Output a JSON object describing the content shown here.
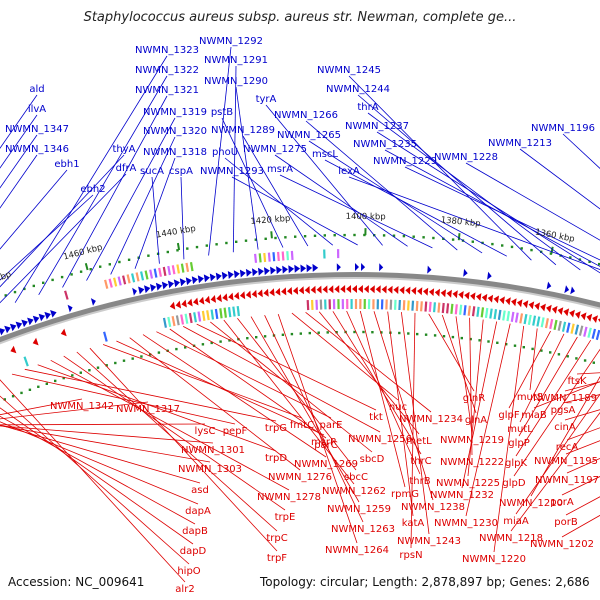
{
  "title": "Staphylococcus aureus subsp. aureus str. Newman, complete ge...",
  "footer": {
    "accession": "Accession: NC_009641",
    "topology": "Topology: circular; Length: 2,878,897 bp; Genes: 2,686"
  },
  "colors": {
    "forward": "#0000cc",
    "reverse": "#dd0000",
    "backbone": "#888888",
    "tick": "#228822"
  },
  "ticks": [
    "1500 kbp",
    "1480 kbp",
    "1460 kbp",
    "1440 kbp",
    "1420 kbp",
    "1400 kbp",
    "1380 kbp",
    "1360 kbp",
    "1340 kbp",
    "1320 kbp",
    "1300 kbp"
  ],
  "top_labels": [
    "ald",
    "ilvA",
    "NWMN_1347",
    "NWMN_1346",
    "ebh1",
    "ebh2",
    "thyA",
    "dfrA",
    "NWMN_1323",
    "NWMN_1322",
    "NWMN_1321",
    "NWMN_1319",
    "NWMN_1320",
    "NWMN_1318",
    "sucA",
    "cspA",
    "NWMN_1292",
    "NWMN_1291",
    "NWMN_1290",
    "pstB",
    "NWMN_1289",
    "phoU",
    "NWMN_1293",
    "tyrA",
    "NWMN_1275",
    "msrA",
    "NWMN_1266",
    "NWMN_1265",
    "mscL",
    "NWMN_1245",
    "NWMN_1244",
    "thrA",
    "NWMN_1237",
    "NWMN_1235",
    "lexA",
    "NWMN_1229",
    "NWMN_1228",
    "NWMN_1213",
    "NWMN_1196"
  ],
  "bottom_labels": [
    "NWMN_1342",
    "NWMN_1317",
    "lysC",
    "NWMN_1301",
    "NWMN_1303",
    "asd",
    "dapA",
    "dapB",
    "dapD",
    "hipO",
    "alr2",
    "pepF",
    "trpG",
    "trpD",
    "NWMN_1278",
    "trpE",
    "trpC",
    "trpF",
    "fmtC",
    "msrR",
    "NWMN_1276",
    "NWMN_1269",
    "parE",
    "parC",
    "NWMN_1256",
    "tkt",
    "sbcD",
    "NWMN_1262",
    "sbcC",
    "NWMN_1259",
    "NWMN_1263",
    "NWMN_1264",
    "nuc",
    "NWMN_1234",
    "metL",
    "thrC",
    "thrB",
    "rpmG",
    "NWMN_1238",
    "katA",
    "NWMN_1243",
    "rpsN",
    "glnR",
    "glnA",
    "NWMN_1219",
    "NWMN_1222",
    "NWMN_1225",
    "NWMN_1232",
    "NWMN_1230",
    "NWMN_1220",
    "mutS",
    "glpF",
    "mutL",
    "glpP",
    "glpK",
    "glpD",
    "NWMN_1210",
    "miaA",
    "NWMN_1218",
    "miaB",
    "NWMN_1189",
    "ftsK",
    "pgsA",
    "cinA",
    "recA",
    "NWMN_1195",
    "NWMN_1197",
    "porA",
    "porB",
    "NWMN_1202"
  ]
}
